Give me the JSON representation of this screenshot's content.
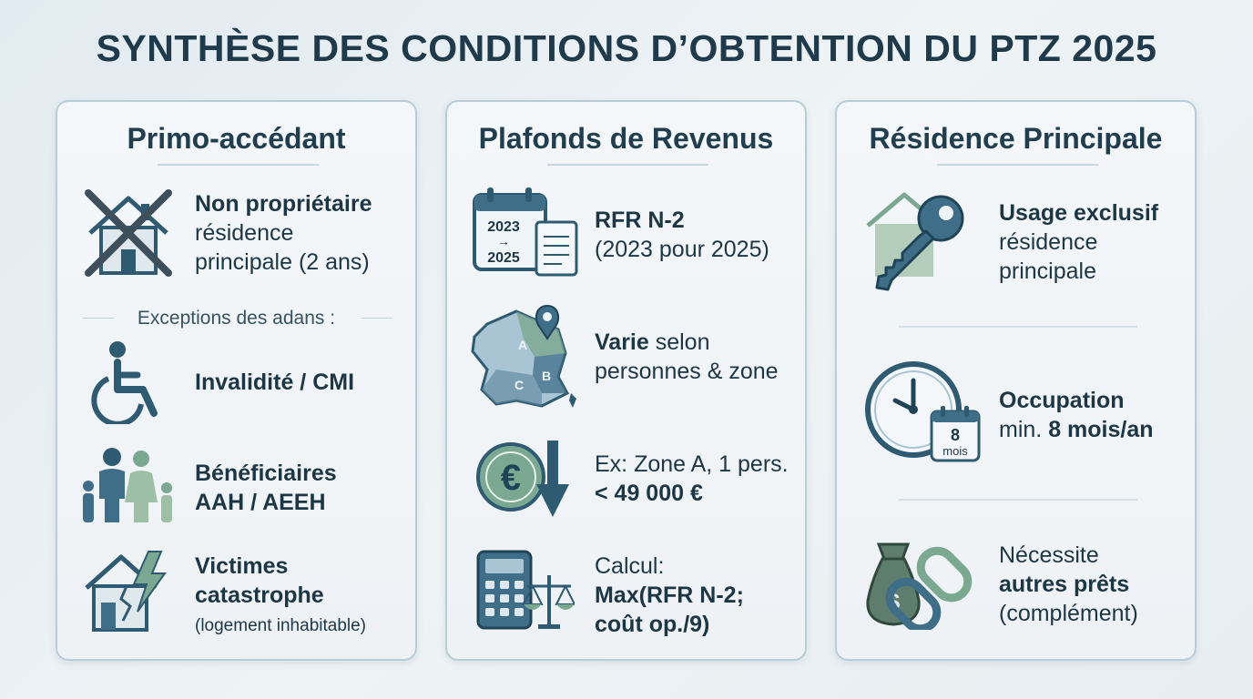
{
  "title": "SYNTHÈSE DES CONDITIONS D’OBTENTION DU PTZ 2025",
  "colors": {
    "dark": "#234e65",
    "mid": "#3f6f88",
    "green": "#7aa890",
    "light": "#a9c4d2"
  },
  "cards": [
    {
      "title": "Primo-accédant",
      "items": [
        {
          "icon": "crossed-house-icon",
          "bold": "Non propriétaire",
          "line2": "résidence",
          "line3": "principale (2 ans)"
        },
        {
          "icon": "wheelchair-icon",
          "bold": "Invalidité / CMI"
        },
        {
          "icon": "family-icon",
          "bold": "Bénéficiaires",
          "bold2": "AAH / AEEH"
        },
        {
          "icon": "damaged-house-icon",
          "bold": "Victimes",
          "bold2": "catastrophe",
          "small": "(logement inhabitable)"
        }
      ],
      "exceptions": "Exceptions des adans :"
    },
    {
      "title": "Plafonds de Revenus",
      "items": [
        {
          "icon": "calendar-document-icon",
          "cal_top": "2023",
          "cal_arrow": "→",
          "cal_bottom": "2025",
          "bold": "RFR N-2",
          "line2": "(2023 pour 2025)"
        },
        {
          "icon": "france-map-icon",
          "zones": [
            "A",
            "B",
            "C"
          ],
          "bold": "Varie",
          "rest": " selon",
          "line2": "personnes & zone"
        },
        {
          "icon": "euro-down-icon",
          "line1": "Ex: Zone A, 1 pers.",
          "bold2": "< 49 000 €"
        },
        {
          "icon": "calculator-scale-icon",
          "line1": "Calcul:",
          "bold2": "Max(RFR N-2;",
          "bold3": "coût op./9)"
        }
      ]
    },
    {
      "title": "Résidence Principale",
      "items": [
        {
          "icon": "house-key-icon",
          "bold": "Usage exclusif",
          "line2": "résidence",
          "line3": "principale"
        },
        {
          "icon": "clock-calendar-icon",
          "cal_num": "8",
          "cal_unit": "mois",
          "bold": "Occupation",
          "pre": "min. ",
          "bold2": "8 mois/an"
        },
        {
          "icon": "moneybag-chain-icon",
          "line1": "Nécessite",
          "bold2": "autres prêts",
          "line3": "(complément)"
        }
      ]
    }
  ]
}
